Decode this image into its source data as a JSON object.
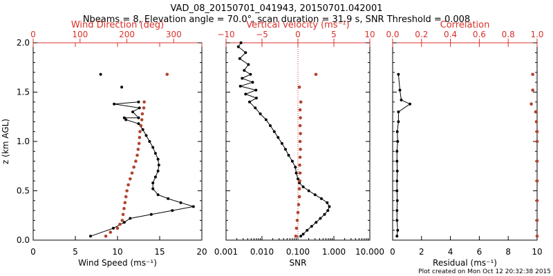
{
  "title_line1": "VAD_08_20150701_041943, 20150701.042001",
  "title_line2": "Nbeams = 8, Elevation angle = 70.0°, scan duration = 31.9 s, SNR Threshold = 0.008",
  "footer": "Plot created on Mon Oct 12 20:32:38 2015",
  "colors": {
    "black_series": "#000000",
    "red_series": "#b0442c",
    "red_axis": "#d9302a"
  },
  "chart_data": [
    {
      "type": "line",
      "ylabel": "z (km AGL)",
      "ylim": [
        0,
        2
      ],
      "yticks": [
        "0.0",
        "0.5",
        "1.0",
        "1.5",
        "2.0"
      ],
      "bottom_axis": {
        "label": "Wind Speed (ms⁻¹)",
        "lim": [
          0,
          20
        ],
        "scale": "linear",
        "ticks": [
          0,
          5,
          10,
          15,
          20
        ],
        "tick_labels": [
          "0",
          "5",
          "10",
          "15",
          "20"
        ]
      },
      "top_axis": {
        "label": "Wind Direction (deg)",
        "lim": [
          0,
          360
        ],
        "scale": "linear",
        "ticks": [
          0,
          100,
          200,
          300
        ],
        "tick_labels": [
          "0",
          "100",
          "200",
          "300"
        ]
      },
      "series": [
        {
          "axis": "bottom",
          "style": "line-markers",
          "color": "#000000",
          "points": [
            [
              6.8,
              0.04
            ],
            [
              9.5,
              0.12
            ],
            [
              10.8,
              0.18
            ],
            [
              11.5,
              0.22
            ],
            [
              14.0,
              0.26
            ],
            [
              16.5,
              0.3
            ],
            [
              19.0,
              0.34
            ],
            [
              17.5,
              0.38
            ],
            [
              16.0,
              0.42
            ],
            [
              14.8,
              0.46
            ],
            [
              14.2,
              0.52
            ],
            [
              14.2,
              0.58
            ],
            [
              14.5,
              0.64
            ],
            [
              14.8,
              0.7
            ],
            [
              14.9,
              0.76
            ],
            [
              14.8,
              0.82
            ],
            [
              14.5,
              0.88
            ],
            [
              14.2,
              0.94
            ],
            [
              13.8,
              1.0
            ],
            [
              13.4,
              1.06
            ],
            [
              13.0,
              1.12
            ],
            [
              12.5,
              1.18
            ],
            [
              11.0,
              1.22
            ],
            [
              10.8,
              1.24
            ],
            [
              12.5,
              1.24
            ],
            [
              11.8,
              1.3
            ],
            [
              12.6,
              1.34
            ],
            [
              9.6,
              1.38
            ],
            [
              12.5,
              1.4
            ]
          ]
        },
        {
          "axis": "bottom",
          "style": "markers",
          "color": "#000000",
          "points": [
            [
              8.0,
              1.68
            ],
            [
              10.5,
              1.55
            ]
          ]
        },
        {
          "axis": "top",
          "style": "markers",
          "color": "#b0442c",
          "points": [
            [
              155,
              0.04
            ],
            [
              165,
              0.08
            ],
            [
              180,
              0.12
            ],
            [
              185,
              0.16
            ],
            [
              190,
              0.2
            ],
            [
              192,
              0.26
            ],
            [
              194,
              0.32
            ],
            [
              196,
              0.38
            ],
            [
              198,
              0.44
            ],
            [
              200,
              0.5
            ],
            [
              203,
              0.56
            ],
            [
              207,
              0.62
            ],
            [
              211,
              0.68
            ],
            [
              215,
              0.74
            ],
            [
              219,
              0.8
            ],
            [
              222,
              0.86
            ],
            [
              224,
              0.92
            ],
            [
              226,
              0.98
            ],
            [
              227,
              1.04
            ],
            [
              228,
              1.1
            ],
            [
              230,
              1.16
            ],
            [
              232,
              1.22
            ],
            [
              233,
              1.28
            ],
            [
              236,
              1.34
            ],
            [
              237,
              1.4
            ],
            [
              286,
              1.68
            ]
          ]
        }
      ]
    },
    {
      "type": "line",
      "ylim": [
        0,
        2
      ],
      "bottom_axis": {
        "label": "SNR",
        "lim": [
          0.001,
          10
        ],
        "scale": "log",
        "ticks": [
          0.001,
          0.01,
          0.1,
          1,
          10
        ],
        "tick_labels": [
          "0.001",
          "0.010",
          "0.100",
          "1.000",
          "10.000"
        ]
      },
      "top_axis": {
        "label": "Vertical velocity (ms⁻¹)",
        "lim": [
          -10,
          10
        ],
        "scale": "linear",
        "ticks": [
          -10,
          -5,
          0,
          5,
          10
        ],
        "tick_labels": [
          "−10",
          "−5",
          "0",
          "5",
          "10"
        ],
        "zero_line": true
      },
      "series": [
        {
          "axis": "bottom",
          "style": "line-markers",
          "color": "#000000",
          "points": [
            [
              0.12,
              0.04
            ],
            [
              0.14,
              0.06
            ],
            [
              0.18,
              0.1
            ],
            [
              0.24,
              0.14
            ],
            [
              0.32,
              0.18
            ],
            [
              0.42,
              0.22
            ],
            [
              0.55,
              0.26
            ],
            [
              0.68,
              0.3
            ],
            [
              0.75,
              0.34
            ],
            [
              0.65,
              0.38
            ],
            [
              0.45,
              0.42
            ],
            [
              0.3,
              0.46
            ],
            [
              0.2,
              0.5
            ],
            [
              0.14,
              0.54
            ],
            [
              0.11,
              0.58
            ],
            [
              0.1,
              0.62
            ],
            [
              0.09,
              0.68
            ],
            [
              0.085,
              0.74
            ],
            [
              0.07,
              0.8
            ],
            [
              0.055,
              0.86
            ],
            [
              0.045,
              0.92
            ],
            [
              0.036,
              0.98
            ],
            [
              0.028,
              1.04
            ],
            [
              0.022,
              1.1
            ],
            [
              0.017,
              1.16
            ],
            [
              0.013,
              1.22
            ],
            [
              0.009,
              1.28
            ],
            [
              0.0065,
              1.34
            ],
            [
              0.0045,
              1.4
            ],
            [
              0.007,
              1.44
            ],
            [
              0.0035,
              1.48
            ],
            [
              0.0068,
              1.52
            ],
            [
              0.0025,
              1.56
            ],
            [
              0.0055,
              1.6
            ],
            [
              0.0028,
              1.64
            ],
            [
              0.0048,
              1.68
            ],
            [
              0.0032,
              1.72
            ],
            [
              0.0042,
              1.78
            ],
            [
              0.0024,
              1.84
            ],
            [
              0.0035,
              1.9
            ],
            [
              0.0022,
              1.96
            ],
            [
              0.0026,
              2.0
            ]
          ]
        },
        {
          "axis": "top",
          "style": "markers",
          "color": "#b0442c",
          "points": [
            [
              -0.3,
              0.04
            ],
            [
              -0.2,
              0.12
            ],
            [
              -0.1,
              0.2
            ],
            [
              0.0,
              0.28
            ],
            [
              0.1,
              0.36
            ],
            [
              0.2,
              0.44
            ],
            [
              0.2,
              0.52
            ],
            [
              0.25,
              0.6
            ],
            [
              0.3,
              0.68
            ],
            [
              0.25,
              0.76
            ],
            [
              0.3,
              0.84
            ],
            [
              0.35,
              0.92
            ],
            [
              0.3,
              1.0
            ],
            [
              0.35,
              1.08
            ],
            [
              0.3,
              1.16
            ],
            [
              0.35,
              1.24
            ],
            [
              0.3,
              1.32
            ],
            [
              0.4,
              1.4
            ],
            [
              0.2,
              1.55
            ],
            [
              2.5,
              1.68
            ]
          ]
        }
      ]
    },
    {
      "type": "line",
      "ylim": [
        0,
        2
      ],
      "bottom_axis": {
        "label": "Residual (ms⁻¹)",
        "lim": [
          0,
          10
        ],
        "scale": "linear",
        "ticks": [
          0,
          2,
          4,
          6,
          8,
          10
        ],
        "tick_labels": [
          "0",
          "2",
          "4",
          "6",
          "8",
          "10"
        ]
      },
      "top_axis": {
        "label": "Correlation",
        "lim": [
          0,
          1
        ],
        "scale": "linear",
        "ticks": [
          0,
          0.2,
          0.4,
          0.6,
          0.8,
          1.0
        ],
        "tick_labels": [
          "0.0",
          "0.2",
          "0.4",
          "0.6",
          "0.8",
          "1.0"
        ]
      },
      "series": [
        {
          "axis": "bottom",
          "style": "line-markers",
          "color": "#000000",
          "points": [
            [
              0.3,
              0.04
            ],
            [
              0.35,
              0.1
            ],
            [
              0.3,
              0.2
            ],
            [
              0.3,
              0.3
            ],
            [
              0.32,
              0.4
            ],
            [
              0.3,
              0.5
            ],
            [
              0.3,
              0.6
            ],
            [
              0.32,
              0.7
            ],
            [
              0.3,
              0.8
            ],
            [
              0.3,
              0.9
            ],
            [
              0.35,
              1.0
            ],
            [
              0.32,
              1.1
            ],
            [
              0.4,
              1.2
            ],
            [
              0.4,
              1.3
            ],
            [
              1.2,
              1.38
            ],
            [
              0.6,
              1.42
            ],
            [
              0.5,
              1.52
            ],
            [
              0.4,
              1.68
            ]
          ]
        },
        {
          "axis": "top",
          "style": "markers",
          "color": "#b0442c",
          "points": [
            [
              1.0,
              0.04
            ],
            [
              1.0,
              0.2
            ],
            [
              1.0,
              0.4
            ],
            [
              1.0,
              0.6
            ],
            [
              1.0,
              0.8
            ],
            [
              1.0,
              1.0
            ],
            [
              1.0,
              1.1
            ],
            [
              0.995,
              1.2
            ],
            [
              0.99,
              1.3
            ],
            [
              0.96,
              1.38
            ],
            [
              0.97,
              1.52
            ],
            [
              0.97,
              1.68
            ]
          ]
        }
      ]
    }
  ]
}
